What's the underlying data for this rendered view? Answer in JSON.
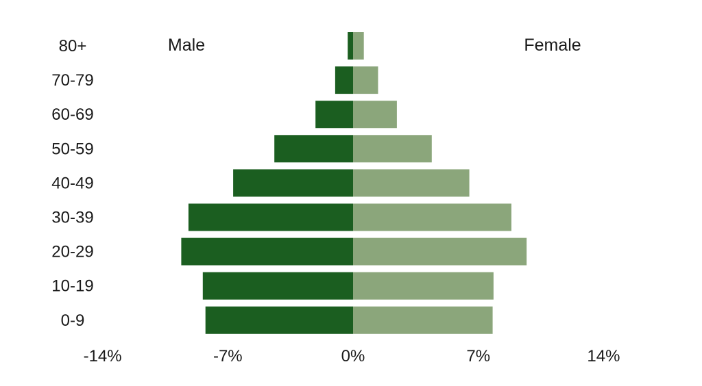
{
  "chart_data": {
    "type": "bar",
    "orientation": "horizontal",
    "variant": "population-pyramid",
    "categories": [
      "80+",
      "70-79",
      "60-69",
      "50-59",
      "40-49",
      "30-39",
      "20-29",
      "10-19",
      "0-9"
    ],
    "series": [
      {
        "name": "Male",
        "side": "left",
        "color": "#1b5e20",
        "values": [
          -0.3,
          -1.0,
          -2.1,
          -4.4,
          -6.7,
          -9.2,
          -9.6,
          -8.4,
          -8.25
        ]
      },
      {
        "name": "Female",
        "side": "right",
        "color": "#8ba67b",
        "values": [
          0.6,
          1.4,
          2.45,
          4.4,
          6.5,
          8.85,
          9.7,
          7.85,
          7.8
        ]
      }
    ],
    "xticks": [
      "-14%",
      "-7%",
      "0%",
      "7%",
      "14%"
    ],
    "xtick_values": [
      -14,
      -7,
      0,
      7,
      14
    ],
    "xlim": [
      -14,
      14
    ],
    "grid": false,
    "legend": "top (Male at left, Female at right)"
  }
}
